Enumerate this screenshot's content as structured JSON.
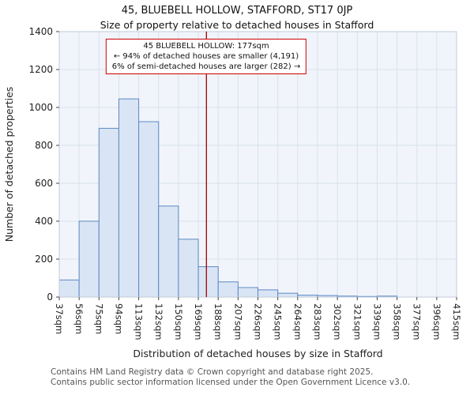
{
  "page": {
    "title": "45, BLUEBELL HOLLOW, STAFFORD, ST17 0JP",
    "subtitle": "Size of property relative to detached houses in Stafford"
  },
  "annotation": {
    "line1": "45 BLUEBELL HOLLOW: 177sqm",
    "line2": "← 94% of detached houses are smaller (4,191)",
    "line3": "6% of semi-detached houses are larger (282) →"
  },
  "footer": {
    "line1": "Contains HM Land Registry data © Crown copyright and database right 2025.",
    "line2": "Contains public sector information licensed under the Open Government Licence v3.0."
  },
  "chart_data": {
    "type": "bar",
    "title": "45, BLUEBELL HOLLOW, STAFFORD, ST17 0JP",
    "subtitle": "Size of property relative to detached houses in Stafford",
    "xlabel": "Distribution of detached houses by size in Stafford",
    "ylabel": "Number of detached properties",
    "categories": [
      "37sqm",
      "56sqm",
      "75sqm",
      "94sqm",
      "113sqm",
      "132sqm",
      "150sqm",
      "169sqm",
      "188sqm",
      "207sqm",
      "226sqm",
      "245sqm",
      "264sqm",
      "283sqm",
      "302sqm",
      "321sqm",
      "339sqm",
      "358sqm",
      "377sqm",
      "396sqm",
      "415sqm"
    ],
    "bin_edges_sqm": [
      37,
      56,
      75,
      94,
      113,
      132,
      150,
      169,
      188,
      207,
      226,
      245,
      264,
      283,
      302,
      321,
      339,
      358,
      377,
      396,
      415
    ],
    "values": [
      90,
      400,
      890,
      1045,
      925,
      480,
      305,
      160,
      80,
      50,
      38,
      20,
      10,
      8,
      5,
      3,
      5,
      0,
      0,
      0
    ],
    "ylim": [
      0,
      1400
    ],
    "ytick_step": 200,
    "marker_value_sqm": 177,
    "grid": true,
    "colors": {
      "bar_fill": "#d9e5f4",
      "bar_stroke": "#5e87c4",
      "marker_line": "#a40000",
      "annotation_border": "#cc0000",
      "grid_line": "#d9e1ee",
      "plot_border": "#c2cbda",
      "plot_bg": "#f1f5fb",
      "tick_text": "#222222",
      "footer_text": "#555555"
    }
  }
}
